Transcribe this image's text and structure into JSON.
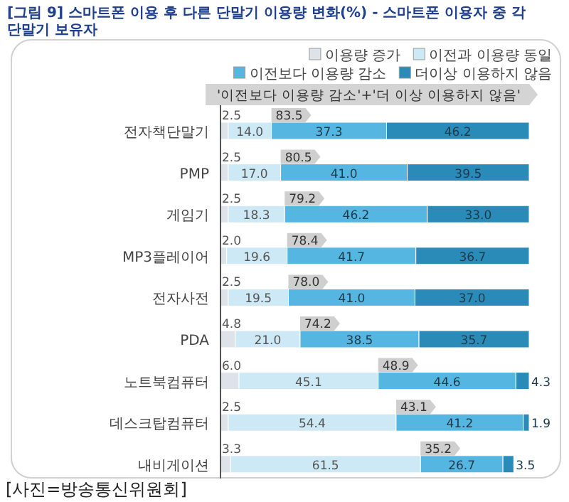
{
  "chart_data": {
    "type": "bar",
    "orientation": "horizontal",
    "stacked": true,
    "title": "[그림 9] 스마트폰 이용 후 다른 단말기 이용량 변화(%) - 스마트폰 이용자 중 각 단말기 보유자",
    "categories": [
      "전자책단말기",
      "PMP",
      "게임기",
      "MP3플레이어",
      "전자사전",
      "PDA",
      "노트북컴퓨터",
      "데스크탑컴퓨터",
      "내비게이션"
    ],
    "series": [
      {
        "name": "이용량 증가",
        "color": "#dde3e8",
        "values": [
          2.5,
          2.5,
          2.5,
          2.0,
          2.5,
          4.8,
          6.0,
          2.5,
          3.3
        ],
        "value_labels": [
          "2.5",
          "2.5",
          "2.5",
          "2.0",
          "2.5",
          "4.8",
          "6.0",
          "2.5",
          "3.3"
        ]
      },
      {
        "name": "이전과 이용량 동일",
        "color": "#cde9f6",
        "values": [
          14.0,
          17.0,
          18.3,
          19.6,
          19.5,
          21.0,
          45.1,
          54.4,
          61.5
        ],
        "value_labels": [
          "14.0",
          "17.0",
          "18.3",
          "19.6",
          "19.5",
          "21.0",
          "45.1",
          "54.4",
          "61.5"
        ]
      },
      {
        "name": "이전보다 이용량 감소",
        "color": "#56b6e2",
        "values": [
          37.3,
          41.0,
          46.2,
          41.7,
          41.0,
          38.5,
          44.6,
          41.2,
          26.7
        ],
        "value_labels": [
          "37.3",
          "41.0",
          "46.2",
          "41.7",
          "41.0",
          "38.5",
          "44.6",
          "41.2",
          "26.7"
        ]
      },
      {
        "name": "더이상 이용하지 않음",
        "color": "#2a8bb9",
        "values": [
          46.2,
          39.5,
          33.0,
          36.7,
          37.0,
          35.7,
          4.3,
          1.9,
          3.5
        ],
        "value_labels": [
          "46.2",
          "39.5",
          "33.0",
          "36.7",
          "37.0",
          "35.7",
          "4.3",
          "1.9",
          "3.5"
        ]
      }
    ],
    "xlim": [
      0,
      100
    ],
    "tick_labels": "y",
    "legend": "top right",
    "data_labels": true,
    "annotations": [
      "'이전보다 이용량 감소'+'더 이상 이용하지 않음'",
      {
        "text": "83.5",
        "x": 16.5,
        "y": "전자책단말기"
      },
      {
        "text": "80.5",
        "x": 19.5,
        "y": "PMP"
      },
      {
        "text": "79.2",
        "x": 20.8,
        "y": "게임기"
      },
      {
        "text": "78.4",
        "x": 21.6,
        "y": "MP3플레이어"
      },
      {
        "text": "78.0",
        "x": 22.0,
        "y": "전자사전"
      },
      {
        "text": "74.2",
        "x": 25.8,
        "y": "PDA"
      },
      {
        "text": "48.9",
        "x": 51.1,
        "y": "노트북컴퓨터"
      },
      {
        "text": "43.1",
        "x": 56.9,
        "y": "데스크탑컴퓨터"
      },
      {
        "text": "35.2",
        "x": 64.8,
        "y": "내비게이션"
      },
      "[사진=방송통신위원회]"
    ]
  }
}
